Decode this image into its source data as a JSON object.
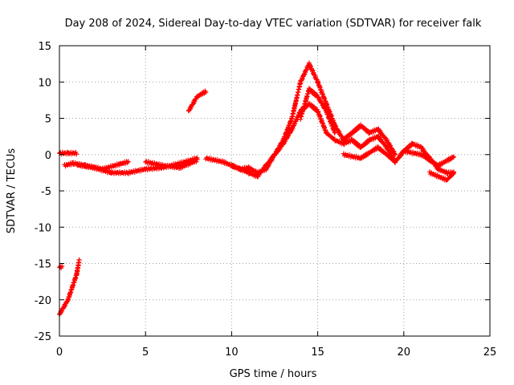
{
  "chart_data": {
    "type": "scatter",
    "title": "Day 208 of 2024, Sidereal Day-to-day VTEC variation (SDTVAR) for receiver falk",
    "xlabel": "GPS time / hours",
    "ylabel": "SDTVAR / TECUs",
    "xlim": [
      0,
      25
    ],
    "ylim": [
      -25,
      15
    ],
    "xticks": [
      0,
      5,
      10,
      15,
      20,
      25
    ],
    "yticks": [
      -25,
      -20,
      -15,
      -10,
      -5,
      0,
      5,
      10,
      15
    ],
    "grid": true,
    "marker": "+",
    "series": [
      {
        "name": "SDTVAR",
        "color": "#ff0000",
        "segments": [
          {
            "x": [
              0.0,
              0.5,
              1.0,
              1.15
            ],
            "y": [
              -22,
              -20,
              -16.5,
              -14.5
            ]
          },
          {
            "x": [
              0.0,
              0.15
            ],
            "y": [
              -15.5,
              -15.5
            ]
          },
          {
            "x": [
              0.0,
              0.5,
              1.0
            ],
            "y": [
              0.2,
              0.2,
              0.2
            ]
          },
          {
            "x": [
              0.3,
              0.8,
              1.5,
              2.5,
              3.5,
              4.0
            ],
            "y": [
              -1.5,
              -1.2,
              -1.5,
              -2.0,
              -1.3,
              -1.0
            ]
          },
          {
            "x": [
              1.0,
              2.0,
              3.0,
              4.0,
              5.0,
              6.0,
              7.0,
              8.0
            ],
            "y": [
              -1.4,
              -1.8,
              -2.5,
              -2.5,
              -2.0,
              -1.8,
              -1.2,
              -0.5
            ]
          },
          {
            "x": [
              5.0,
              6.0,
              7.0,
              8.0
            ],
            "y": [
              -1.0,
              -1.5,
              -1.8,
              -0.8
            ]
          },
          {
            "x": [
              7.5,
              8.0,
              8.5
            ],
            "y": [
              6.0,
              8.0,
              8.7
            ]
          },
          {
            "x": [
              8.5,
              9.5,
              10.5,
              11.0,
              11.5,
              12.0,
              12.5,
              13.0,
              13.5,
              14.0,
              14.5,
              15.0,
              15.5,
              16.0,
              16.5,
              17.0,
              17.5,
              18.0,
              18.5,
              19.0,
              19.5,
              20.0,
              20.5,
              21.0,
              21.5,
              22.0,
              22.5,
              22.9
            ],
            "y": [
              -0.5,
              -1.0,
              -2.0,
              -1.8,
              -2.5,
              -2.0,
              0.0,
              1.5,
              3.5,
              6.0,
              7.0,
              6.0,
              3.0,
              2.0,
              1.5,
              2.0,
              1.0,
              2.0,
              2.5,
              1.0,
              -1.0,
              0.5,
              1.5,
              1.0,
              -0.5,
              -2.0,
              -2.5,
              -2.5
            ]
          },
          {
            "x": [
              10.0,
              11.0,
              11.5,
              12.0,
              12.5,
              13.0,
              13.5,
              14.0,
              14.5,
              15.0,
              15.5,
              16.0,
              16.5,
              17.0,
              17.5,
              18.0,
              18.5,
              19.0,
              19.5
            ],
            "y": [
              -1.5,
              -2.5,
              -3.0,
              -1.5,
              0.0,
              2.0,
              5.0,
              10.0,
              12.5,
              10.0,
              7.0,
              4.0,
              2.0,
              3.0,
              4.0,
              3.0,
              3.5,
              2.0,
              0.0
            ]
          },
          {
            "x": [
              14.0,
              14.5,
              15.0,
              15.5,
              16.0
            ],
            "y": [
              5.0,
              9.0,
              8.0,
              6.0,
              3.0
            ]
          },
          {
            "x": [
              16.5,
              17.5,
              18.5,
              19.5
            ],
            "y": [
              0.0,
              -0.5,
              1.0,
              -1.0
            ]
          },
          {
            "x": [
              20.0,
              21.0,
              22.0,
              22.9
            ],
            "y": [
              0.5,
              0.0,
              -1.5,
              -0.3
            ]
          },
          {
            "x": [
              21.5,
              22.5,
              22.9
            ],
            "y": [
              -2.5,
              -3.5,
              -2.5
            ]
          }
        ]
      }
    ]
  }
}
